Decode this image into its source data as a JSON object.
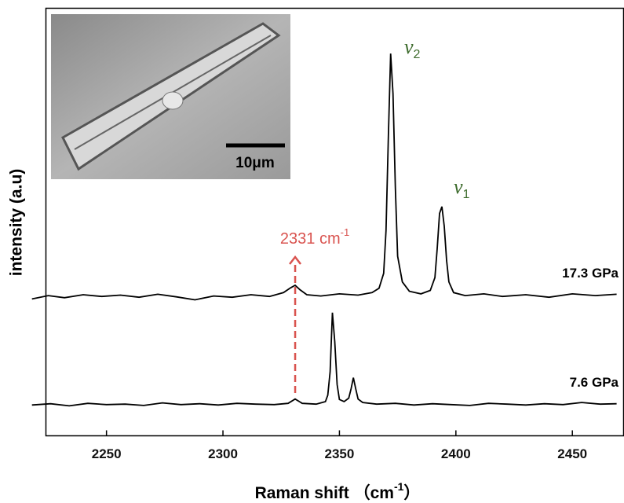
{
  "chart_data": {
    "type": "line",
    "x_label": {
      "text": "Raman shift （cm",
      "sup": "-1",
      "end": "）"
    },
    "y_label": "intensity (a.u)",
    "xlim": [
      2224,
      2472
    ],
    "xticks": [
      2250,
      2300,
      2350,
      2400,
      2450
    ],
    "ylim": [
      0,
      100
    ],
    "series": [
      {
        "name": "17.3 GPa",
        "color": "#000000",
        "x": [
          2218,
          2225,
          2232,
          2240,
          2248,
          2256,
          2264,
          2272,
          2280,
          2288,
          2296,
          2304,
          2312,
          2320,
          2326,
          2329,
          2331,
          2333,
          2336,
          2342,
          2350,
          2358,
          2364,
          2367,
          2369,
          2370,
          2371,
          2372,
          2373,
          2374,
          2375,
          2377,
          2380,
          2385,
          2389,
          2391,
          2392,
          2393,
          2394,
          2395,
          2396,
          2397,
          2399,
          2404,
          2412,
          2420,
          2430,
          2440,
          2450,
          2460,
          2469
        ],
        "values": [
          32,
          32.8,
          32.3,
          33,
          32.6,
          32.9,
          32.4,
          33.1,
          32.5,
          31.8,
          32.7,
          32.4,
          33,
          32.6,
          33.5,
          34.6,
          35.2,
          34.2,
          33,
          32.7,
          33.2,
          32.9,
          33.5,
          34.5,
          38,
          48,
          70,
          89.4,
          80,
          58,
          42,
          36,
          33.8,
          33.2,
          34,
          37,
          44,
          52,
          53.6,
          49,
          41,
          36,
          33.5,
          32.8,
          33.2,
          32.6,
          33,
          32.4,
          33.2,
          32.8,
          33.1
        ]
      },
      {
        "name": "7.6 GPa",
        "color": "#000000",
        "x": [
          2218,
          2226,
          2234,
          2242,
          2250,
          2258,
          2266,
          2274,
          2282,
          2290,
          2298,
          2306,
          2314,
          2322,
          2328,
          2331,
          2334,
          2340,
          2344,
          2345,
          2346,
          2347,
          2348,
          2349,
          2350,
          2352,
          2354,
          2355,
          2356,
          2357,
          2358,
          2360,
          2366,
          2374,
          2382,
          2390,
          2398,
          2406,
          2414,
          2422,
          2430,
          2438,
          2446,
          2454,
          2462,
          2469
        ],
        "values": [
          7.2,
          7.5,
          7,
          7.6,
          7.3,
          7.4,
          7.1,
          7.7,
          7.3,
          7.5,
          7.2,
          7.6,
          7.4,
          7.3,
          7.6,
          8.6,
          7.6,
          7.4,
          8,
          9.5,
          15,
          28.8,
          22,
          12,
          8.5,
          8,
          8.8,
          11,
          13.6,
          11,
          8.6,
          7.8,
          7.4,
          7.6,
          7.2,
          7.5,
          7.3,
          7.1,
          7.6,
          7.4,
          7.2,
          7.5,
          7.3,
          7.8,
          7.4,
          7.5
        ]
      }
    ],
    "peak_labels": [
      {
        "text": "ν",
        "sub": "2",
        "color": "#3d6b2c"
      },
      {
        "text": "ν",
        "sub": "1",
        "color": "#3d6b2c"
      }
    ],
    "arrow_annotation": {
      "x": 2331,
      "text": "2331 cm",
      "sup": "-1",
      "color": "#d9534f"
    },
    "inset_scale_label": {
      "text": "10",
      "end": "μm"
    }
  }
}
